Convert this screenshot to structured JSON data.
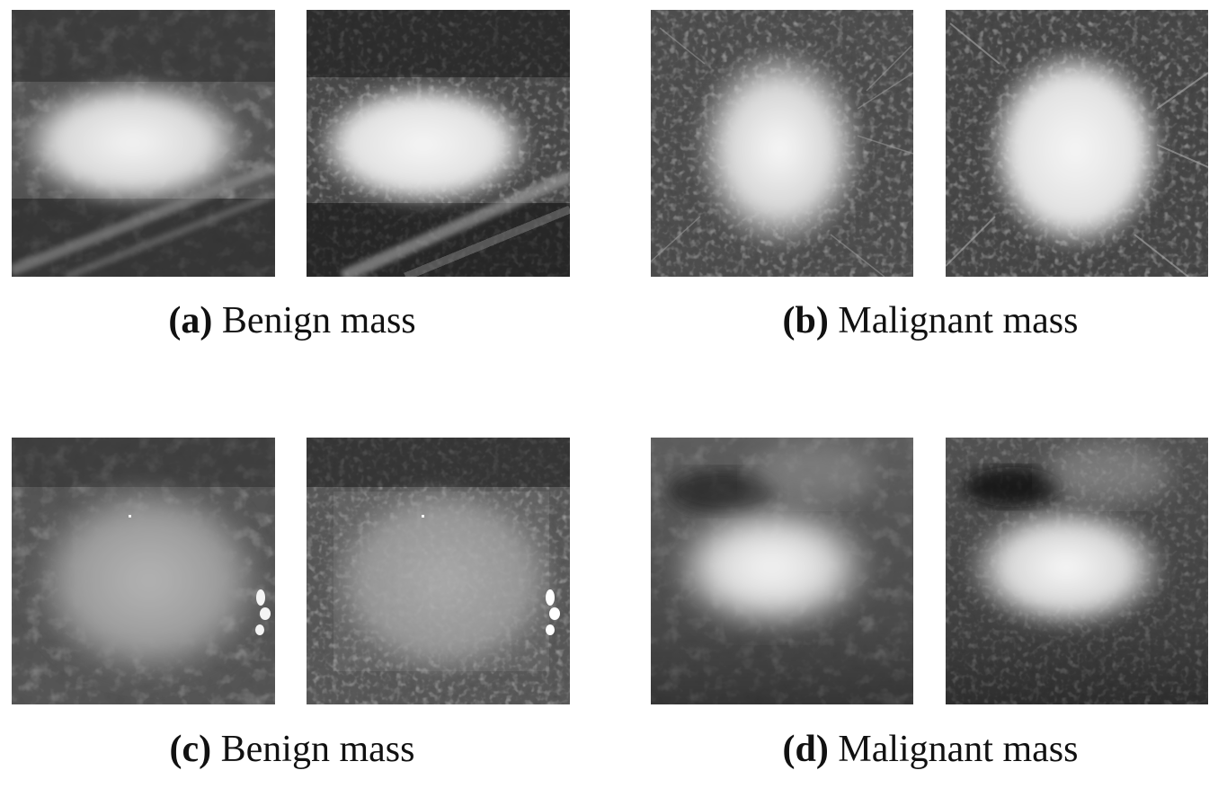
{
  "figure": {
    "panels": [
      {
        "id": "a",
        "letter": "(a)",
        "caption": "Benign mass",
        "images": [
          {
            "name": "benign-mass-original-image"
          },
          {
            "name": "benign-mass-processed-image"
          }
        ]
      },
      {
        "id": "b",
        "letter": "(b)",
        "caption": "Malignant mass",
        "images": [
          {
            "name": "malignant-mass-original-image"
          },
          {
            "name": "malignant-mass-processed-image"
          }
        ]
      },
      {
        "id": "c",
        "letter": "(c)",
        "caption": "Benign mass",
        "images": [
          {
            "name": "benign-mass-original-image"
          },
          {
            "name": "benign-mass-processed-image"
          }
        ]
      },
      {
        "id": "d",
        "letter": "(d)",
        "caption": "Malignant mass",
        "images": [
          {
            "name": "malignant-mass-original-image"
          },
          {
            "name": "malignant-mass-processed-image"
          }
        ]
      }
    ]
  },
  "colors": {
    "background": "#ffffff",
    "tissue_dark": "#2a2a2a",
    "mass_bright": "#e8e8e8"
  }
}
